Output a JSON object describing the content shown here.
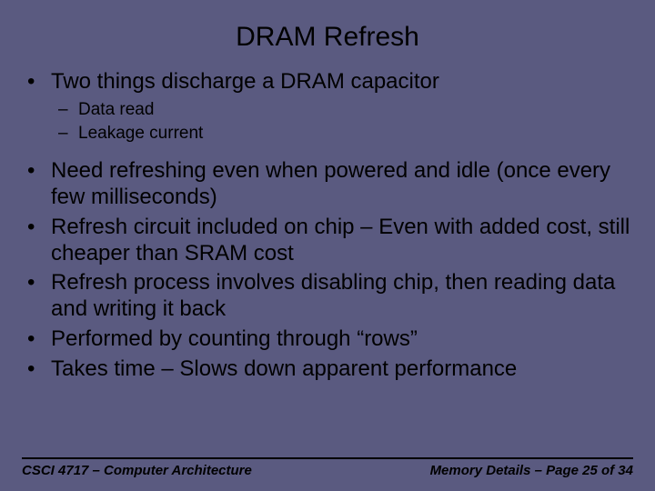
{
  "slide": {
    "background_color": "#5a5a80",
    "text_color": "#000000",
    "title": "DRAM Refresh",
    "title_fontsize": 30,
    "body_fontsize_l1": 24,
    "body_fontsize_l2": 19,
    "bullets": [
      {
        "level": 1,
        "marker": "•",
        "text": "Two things discharge a DRAM capacitor",
        "children": [
          {
            "level": 2,
            "marker": "–",
            "text": "Data read"
          },
          {
            "level": 2,
            "marker": "–",
            "text": "Leakage current"
          }
        ]
      },
      {
        "level": 1,
        "marker": "•",
        "text": "Need refreshing even when powered and idle (once every few milliseconds)"
      },
      {
        "level": 1,
        "marker": "•",
        "text": "Refresh circuit included on chip – Even with added cost, still cheaper than SRAM cost"
      },
      {
        "level": 1,
        "marker": "•",
        "text": "Refresh process involves disabling chip, then reading data and writing it back"
      },
      {
        "level": 1,
        "marker": "•",
        "text": "Performed by counting through “rows”"
      },
      {
        "level": 1,
        "marker": "•",
        "text": "Takes time – Slows down apparent performance"
      }
    ],
    "footer": {
      "left": "CSCI 4717 – Computer Architecture",
      "right": "Memory Details – Page 25 of 34",
      "fontsize": 15
    }
  }
}
